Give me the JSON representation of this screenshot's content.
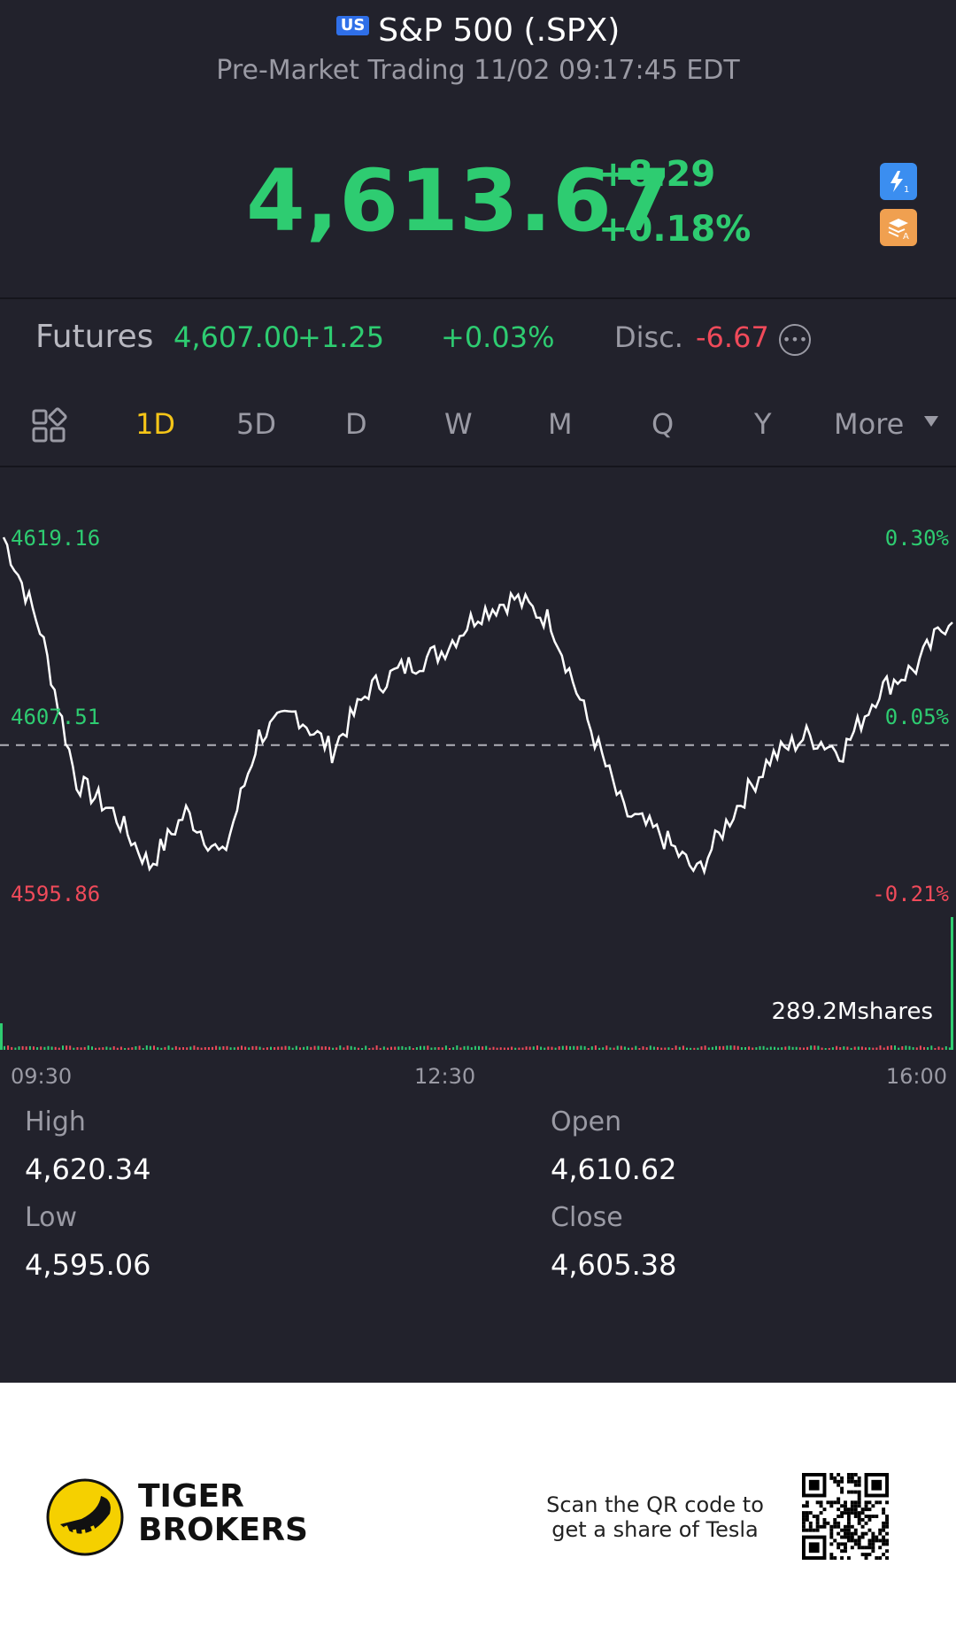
{
  "header": {
    "region_badge": "US",
    "title": "S&P 500 (.SPX)",
    "subtitle": "Pre-Market Trading 11/02 09:17:45 EDT",
    "price": "4,613.67",
    "change_abs": "+8.29",
    "change_pct": "+0.18%",
    "icons": [
      "lightning-icon",
      "stack-icon"
    ]
  },
  "futures": {
    "label": "Futures",
    "value": "4,607.00",
    "change": "+1.25",
    "change_pct": "+0.03%",
    "disc_label": "Disc.",
    "disc_value": "-6.67"
  },
  "tabs": {
    "items": [
      "1D",
      "5D",
      "D",
      "W",
      "M",
      "Q",
      "Y",
      "More"
    ],
    "active": "1D"
  },
  "chart": {
    "y_left_top": "4619.16",
    "y_left_mid": "4607.51",
    "y_left_bottom": "4595.86",
    "y_right_top": "0.30%",
    "y_right_mid": "0.05%",
    "y_right_bottom": "-0.21%",
    "volume": "289.2Mshares",
    "x_labels": [
      "09:30",
      "12:30",
      "16:00"
    ]
  },
  "chart_data": {
    "type": "line",
    "ylim": [
      4595.86,
      4619.16
    ],
    "reference": 4605.38,
    "x": [
      "09:30",
      "09:45",
      "10:00",
      "10:15",
      "10:30",
      "10:45",
      "11:00",
      "11:15",
      "11:30",
      "11:45",
      "12:00",
      "12:15",
      "12:30",
      "12:45",
      "13:00",
      "13:15",
      "13:30",
      "13:45",
      "14:00",
      "14:15",
      "14:30",
      "14:45",
      "15:00",
      "15:15",
      "15:30",
      "15:45",
      "16:00"
    ],
    "values": [
      4619.0,
      4613.0,
      4603.0,
      4601.0,
      4597.5,
      4601.0,
      4598.0,
      4606.0,
      4607.5,
      4605.0,
      4609.0,
      4610.5,
      4611.5,
      4614.0,
      4615.0,
      4613.5,
      4607.0,
      4601.0,
      4599.5,
      4597.0,
      4601.0,
      4604.5,
      4606.0,
      4605.0,
      4609.0,
      4610.5,
      4614.0
    ],
    "colors": {
      "line": "#ffffff",
      "up": "#2ecc71",
      "down": "#f04a5a",
      "background": "#22222c"
    }
  },
  "stats": {
    "high_label": "High",
    "high_value": "4,620.34",
    "open_label": "Open",
    "open_value": "4,610.62",
    "low_label": "Low",
    "low_value": "4,595.06",
    "close_label": "Close",
    "close_value": "4,605.38"
  },
  "footer": {
    "brand_line1": "TIGER",
    "brand_line2": "BROKERS",
    "scan_text": "Scan the QR code to get a share of Tesla"
  }
}
